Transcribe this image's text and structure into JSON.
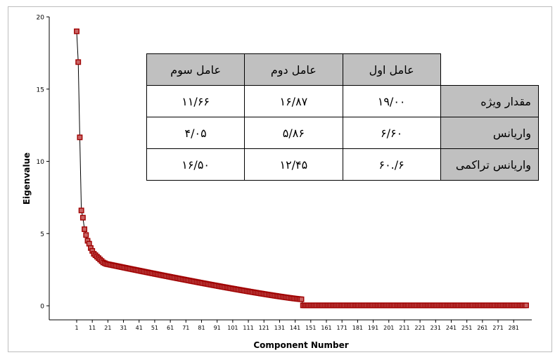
{
  "chart_data": {
    "type": "line",
    "xlabel": "Component Number",
    "ylabel": "Eigenvalue",
    "xlim": [
      1,
      289
    ],
    "ylim": [
      0,
      20
    ],
    "x_ticks": [
      "1",
      "11",
      "21",
      "31",
      "41",
      "51",
      "61",
      "71",
      "81",
      "91",
      "101",
      "111",
      "121",
      "131",
      "141",
      "151",
      "161",
      "171",
      "181",
      "191",
      "201",
      "211",
      "221",
      "231",
      "241",
      "251",
      "261",
      "271",
      "281"
    ],
    "y_ticks": [
      "0",
      "5",
      "10",
      "15",
      "20"
    ],
    "marker": "square",
    "line_color": "#000000",
    "marker_color": "#a00000",
    "marker_fill": "#c86464",
    "series": [
      {
        "values": [
          19.0,
          16.87,
          11.66,
          6.6,
          6.1,
          5.3,
          4.9,
          4.5,
          4.3,
          4.0,
          3.8,
          3.6,
          3.5,
          3.4,
          3.3,
          3.2,
          3.1,
          3.0,
          2.95,
          2.9
        ],
        "tail_start": 2.9,
        "tail_end_at_145": 0.45,
        "tail_after_146": 0.03,
        "count": 289
      }
    ]
  },
  "table": {
    "headers": [
      "عامل سوم",
      "عامل دوم",
      "عامل اول"
    ],
    "rows": [
      {
        "label": "مقدار ویژه",
        "values": [
          "۱۱/۶۶",
          "۱۶/۸۷",
          "۱۹/۰۰"
        ]
      },
      {
        "label": "واریانس",
        "values": [
          "۴/۰۵",
          "۵/۸۶",
          "۶/۶۰"
        ]
      },
      {
        "label": "واریانس تراکمی",
        "values": [
          "۱۶/۵۰",
          "۱۲/۴۵",
          "۶/.۶۰"
        ]
      }
    ]
  }
}
